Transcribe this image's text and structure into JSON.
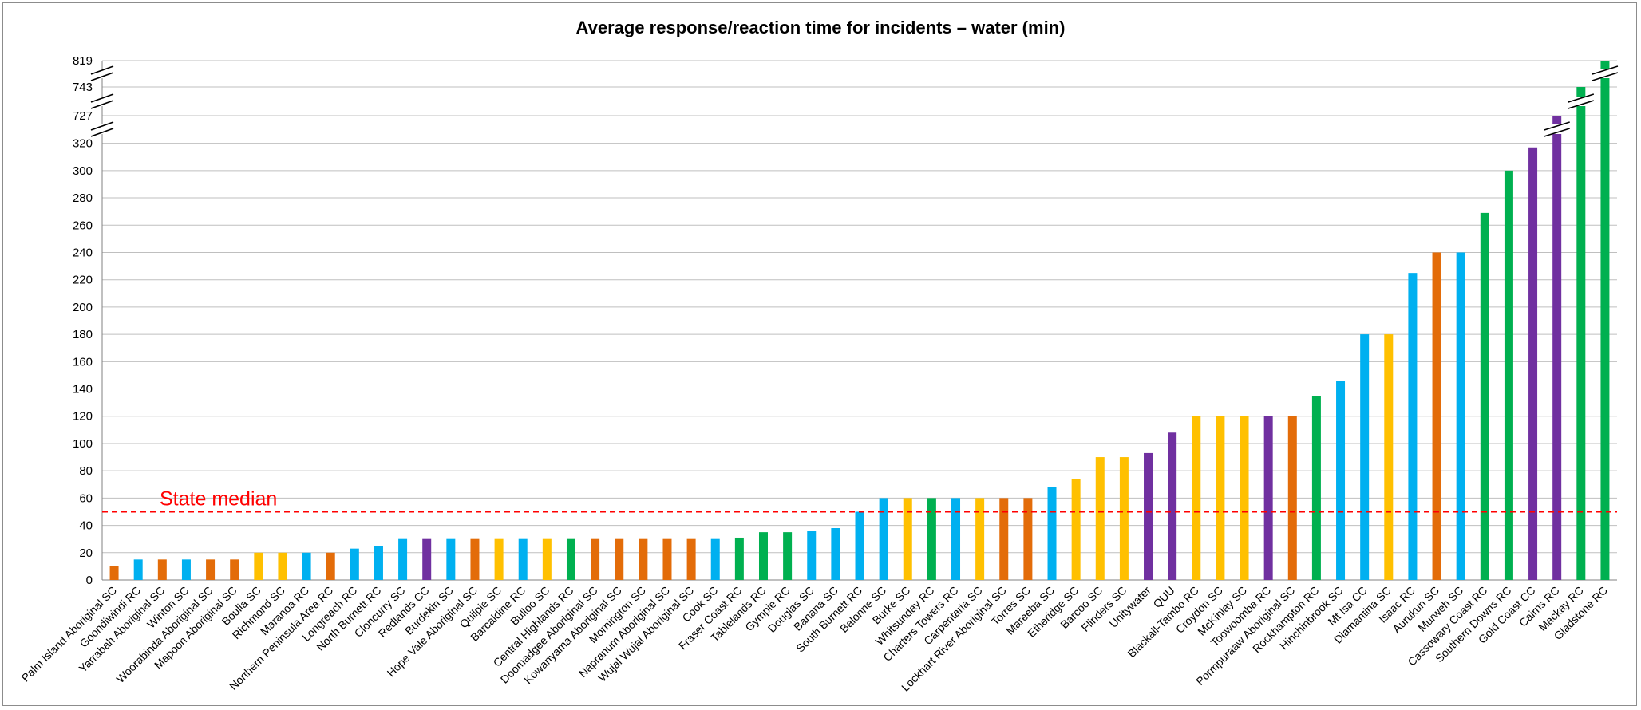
{
  "chart_data": {
    "type": "bar",
    "title": "Average response/reaction time for incidents – water (min)",
    "xlabel": "",
    "ylabel": "",
    "grid": true,
    "legend": "none",
    "y_axis": {
      "ticks": [
        "0",
        "20",
        "40",
        "60",
        "80",
        "100",
        "120",
        "140",
        "160",
        "180",
        "200",
        "220",
        "240",
        "260",
        "280",
        "300",
        "320",
        "727",
        "743",
        "819"
      ],
      "linear_max": 320,
      "breaks": [
        {
          "below": "320",
          "above": "727"
        },
        {
          "below": "727",
          "above": "743"
        },
        {
          "below": "743",
          "above": "819"
        }
      ]
    },
    "reference_line": {
      "label": "State median",
      "value": 50,
      "color": "#ff0000",
      "style": "dashed"
    },
    "colors": {
      "blue": "#00b0f0",
      "orange": "#e36c09",
      "yellow": "#ffc000",
      "green": "#00b050",
      "purple": "#7030a0"
    },
    "categories": [
      "Palm Island Aboriginal SC",
      "Goondiwindi RC",
      "Yarrabah Aboriginal SC",
      "Winton SC",
      "Woorabinda Aboriginal SC",
      "Mapoon Aboriginal SC",
      "Boulia SC",
      "Richmond SC",
      "Maranoa RC",
      "Northern Peninsula Area RC",
      "Longreach RC",
      "North Burnett RC",
      "Cloncurry SC",
      "Redlands CC",
      "Burdekin SC",
      "Hope Vale Aboriginal SC",
      "Quilpie SC",
      "Barcaldine RC",
      "Bulloo SC",
      "Central Highlands RC",
      "Doomadgee Aboriginal SC",
      "Kowanyama Aboriginal SC",
      "Mornington SC",
      "Napranum Aboriginal SC",
      "Wujal Wujal Aboriginal SC",
      "Cook SC",
      "Fraser Coast RC",
      "Tablelands RC",
      "Gympie RC",
      "Douglas SC",
      "Banana SC",
      "South Burnett RC",
      "Balonne SC",
      "Burke SC",
      "Whitsunday RC",
      "Charters Towers RC",
      "Carpentaria SC",
      "Lockhart River Aboriginal SC",
      "Torres SC",
      "Mareeba SC",
      "Etheridge SC",
      "Barcoo SC",
      "Flinders SC",
      "Unitywater",
      "QUU",
      "Blackall-Tambo RC",
      "Croydon SC",
      "McKinlay SC",
      "Toowoomba RC",
      "Pormpuraaw Aboriginal SC",
      "Rockhampton RC",
      "Hinchinbrook SC",
      "Mt Isa CC",
      "Diamantina SC",
      "Isaac RC",
      "Aurukun SC",
      "Murweh SC",
      "Cassowary Coast RC",
      "Southern Downs RC",
      "Gold Coast CC",
      "Cairns RC",
      "Mackay RC",
      "Gladstone RC"
    ],
    "values": [
      10,
      15,
      15,
      15,
      15,
      15,
      20,
      20,
      20,
      20,
      23,
      25,
      30,
      30,
      30,
      30,
      30,
      30,
      30,
      30,
      30,
      30,
      30,
      30,
      30,
      30,
      31,
      35,
      35,
      36,
      38,
      50,
      60,
      60,
      60,
      60,
      60,
      60,
      60,
      68,
      74,
      90,
      90,
      93,
      108,
      120,
      120,
      120,
      120,
      120,
      135,
      146,
      180,
      180,
      225,
      240,
      240,
      269,
      300,
      317,
      727,
      743,
      819
    ],
    "bar_colors": [
      "orange",
      "blue",
      "orange",
      "blue",
      "orange",
      "orange",
      "yellow",
      "yellow",
      "blue",
      "orange",
      "blue",
      "blue",
      "blue",
      "purple",
      "blue",
      "orange",
      "yellow",
      "blue",
      "yellow",
      "green",
      "orange",
      "orange",
      "orange",
      "orange",
      "orange",
      "blue",
      "green",
      "green",
      "green",
      "blue",
      "blue",
      "blue",
      "blue",
      "yellow",
      "green",
      "blue",
      "yellow",
      "orange",
      "orange",
      "blue",
      "yellow",
      "yellow",
      "yellow",
      "purple",
      "purple",
      "yellow",
      "yellow",
      "yellow",
      "purple",
      "orange",
      "green",
      "blue",
      "blue",
      "yellow",
      "blue",
      "orange",
      "blue",
      "green",
      "green",
      "purple",
      "purple",
      "green",
      "green"
    ]
  }
}
